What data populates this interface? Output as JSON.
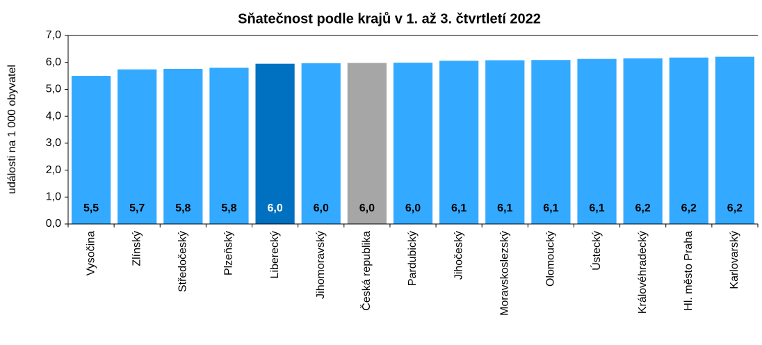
{
  "chart_data": {
    "type": "bar",
    "title": "Sňatečnost podle krajů v 1. až 3. čtvrtletí 2022",
    "y_label": "události na 1 000 obyvatel",
    "categories": [
      "Vysočina",
      "Zlínský",
      "Středočeský",
      "Plzeňský",
      "Liberecký",
      "Jihomoravský",
      "Česká republika",
      "Pardubický",
      "Jihočeský",
      "Moravskoslezský",
      "Olomoucký",
      "Ústecký",
      "Královéhradecký",
      "Hl. město Praha",
      "Karlovarský"
    ],
    "values": [
      5.5,
      5.74,
      5.76,
      5.8,
      5.95,
      5.97,
      5.98,
      5.99,
      6.06,
      6.08,
      6.09,
      6.13,
      6.15,
      6.18,
      6.21
    ],
    "value_labels": [
      "5,5",
      "5,7",
      "5,8",
      "5,8",
      "6,0",
      "6,0",
      "6,0",
      "6,0",
      "6,1",
      "6,1",
      "6,1",
      "6,1",
      "6,2",
      "6,2",
      "6,2"
    ],
    "colors": [
      "#33aaff",
      "#33aaff",
      "#33aaff",
      "#33aaff",
      "#0070c0",
      "#33aaff",
      "#a6a6a6",
      "#33aaff",
      "#33aaff",
      "#33aaff",
      "#33aaff",
      "#33aaff",
      "#33aaff",
      "#33aaff",
      "#33aaff"
    ],
    "value_label_colors": [
      "#000000",
      "#000000",
      "#000000",
      "#000000",
      "#ffffff",
      "#000000",
      "#000000",
      "#000000",
      "#000000",
      "#000000",
      "#000000",
      "#000000",
      "#000000",
      "#000000",
      "#000000"
    ],
    "ylim": [
      0,
      7
    ],
    "yticks": [
      {
        "value": 0,
        "label": "0,0"
      },
      {
        "value": 1,
        "label": "1,0"
      },
      {
        "value": 2,
        "label": "2,0"
      },
      {
        "value": 3,
        "label": "3,0"
      },
      {
        "value": 4,
        "label": "4,0"
      },
      {
        "value": 5,
        "label": "5,0"
      },
      {
        "value": 6,
        "label": "6,0"
      },
      {
        "value": 7,
        "label": "7,0"
      }
    ],
    "grid": false
  }
}
